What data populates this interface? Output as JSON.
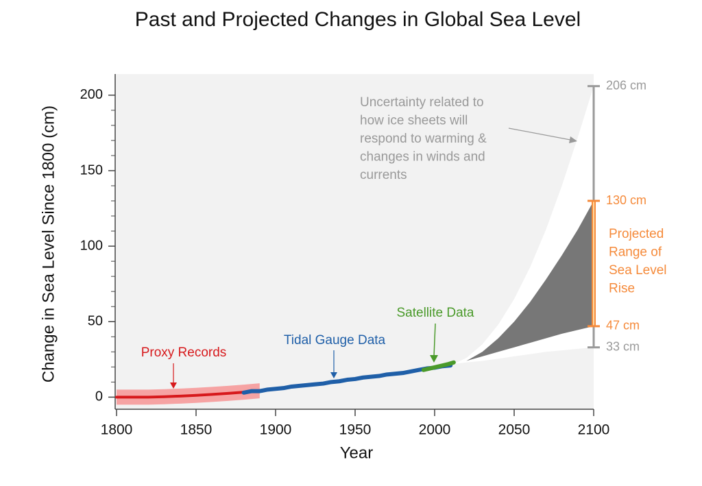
{
  "chart_data": {
    "type": "line",
    "title": "Past and Projected Changes in Global Sea Level",
    "x_label": "Year",
    "y_label": "Change in Sea Level Since 1800 (cm)",
    "xlim": [
      1800,
      2100
    ],
    "ylim": [
      -8,
      214
    ],
    "xticks": [
      1800,
      1850,
      1900,
      1950,
      2000,
      2050,
      2100
    ],
    "yticks": [
      0,
      50,
      100,
      150,
      200
    ],
    "yminorticks": [
      10,
      20,
      30,
      40,
      60,
      70,
      80,
      90,
      110,
      120,
      130,
      140,
      160,
      170,
      180,
      190
    ],
    "series": [
      {
        "name": "Proxy Records",
        "color": "#d7191c",
        "band_color": "#f6a3a3",
        "x": [
          1800,
          1810,
          1820,
          1830,
          1840,
          1850,
          1860,
          1870,
          1880,
          1890
        ],
        "values": [
          0,
          0,
          0,
          0.3,
          0.7,
          1.2,
          1.8,
          2.5,
          3.3,
          4.2
        ],
        "lower": [
          -5,
          -5,
          -5,
          -4.7,
          -4.3,
          -3.8,
          -3.2,
          -2.5,
          -1.7,
          -0.8
        ],
        "upper": [
          5,
          5,
          5,
          5.3,
          5.7,
          6.2,
          6.8,
          7.5,
          8.3,
          9.2
        ]
      },
      {
        "name": "Tidal Gauge Data",
        "color": "#1f5fa8",
        "x": [
          1880,
          1885,
          1890,
          1895,
          1900,
          1905,
          1910,
          1915,
          1920,
          1925,
          1930,
          1935,
          1940,
          1945,
          1950,
          1955,
          1960,
          1965,
          1970,
          1975,
          1980,
          1985,
          1990,
          1995,
          2000,
          2005,
          2010
        ],
        "values": [
          3,
          4,
          4,
          5,
          5.5,
          6,
          7,
          7.5,
          8,
          8.5,
          9,
          10,
          10.5,
          11.5,
          12,
          13,
          13.5,
          14,
          15,
          15.5,
          16,
          17,
          18,
          19,
          19.5,
          20.5,
          21
        ]
      },
      {
        "name": "Satellite Data",
        "color": "#4a9a2a",
        "x": [
          1993,
          1997,
          2001,
          2005,
          2009,
          2012
        ],
        "values": [
          18,
          19,
          20,
          21,
          22,
          23
        ]
      }
    ],
    "projections": [
      {
        "color": "#ffffff",
        "x": [
          2012,
          2020,
          2030,
          2040,
          2050,
          2060,
          2070,
          2080,
          2090,
          2100
        ],
        "lower": [
          22,
          23,
          24,
          25.5,
          27,
          28.5,
          30,
          31,
          32,
          33
        ],
        "upper": [
          22,
          26,
          35,
          48,
          65,
          86,
          111,
          140,
          172,
          206
        ]
      },
      {
        "color": "#777777",
        "x": [
          2012,
          2020,
          2030,
          2040,
          2050,
          2060,
          2070,
          2080,
          2090,
          2100
        ],
        "lower": [
          22,
          24,
          27,
          30,
          33,
          36,
          39,
          42,
          44.5,
          47
        ],
        "upper": [
          22,
          24,
          30,
          39,
          50,
          63,
          78,
          94,
          111,
          130
        ]
      }
    ],
    "range_bars": [
      {
        "x": 2100,
        "color": "#9a9a9a",
        "low": {
          "value": 33,
          "label": "33 cm"
        },
        "high": {
          "value": 206,
          "label": "206 cm"
        }
      },
      {
        "x": 2100,
        "color": "#f58a3a",
        "low": {
          "value": 47,
          "label": "47 cm"
        },
        "high": {
          "value": 130,
          "label": "130 cm"
        },
        "label": [
          "Projected",
          "Range of",
          "Sea Level",
          "Rise"
        ]
      }
    ],
    "uncertainty_note": [
      "Uncertainty related to",
      "how ice sheets will",
      "respond to warming &",
      "changes in winds and",
      "currents"
    ]
  }
}
